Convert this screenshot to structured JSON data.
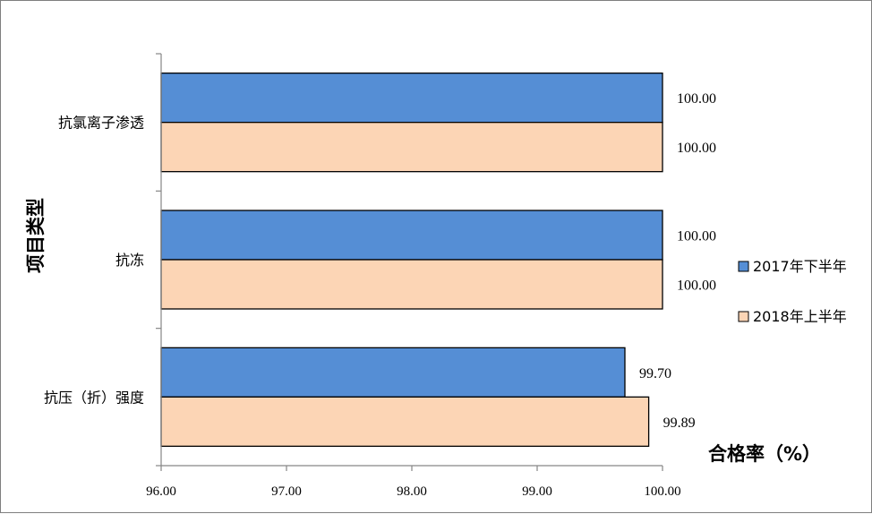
{
  "chart_data": {
    "type": "bar",
    "orientation": "horizontal",
    "categories": [
      "抗氯离子渗透",
      "抗冻",
      "抗压（折）强度"
    ],
    "series": [
      {
        "name": "2017年下半年",
        "values": [
          100.0,
          100.0,
          99.7
        ],
        "color": "#558ED5"
      },
      {
        "name": "2018年上半年",
        "values": [
          100.0,
          100.0,
          99.89
        ],
        "color": "#FCD5B5"
      }
    ],
    "data_labels": [
      [
        "100.00",
        "100.00",
        "99.70"
      ],
      [
        "100.00",
        "100.00",
        "99.89"
      ]
    ],
    "xlabel": "合格率（%）",
    "ylabel": "项目类型",
    "xlim": [
      96.0,
      100.0
    ],
    "xticks": [
      "96.00",
      "97.00",
      "98.00",
      "99.00",
      "100.00"
    ],
    "grid": false,
    "legend_position": "right"
  }
}
